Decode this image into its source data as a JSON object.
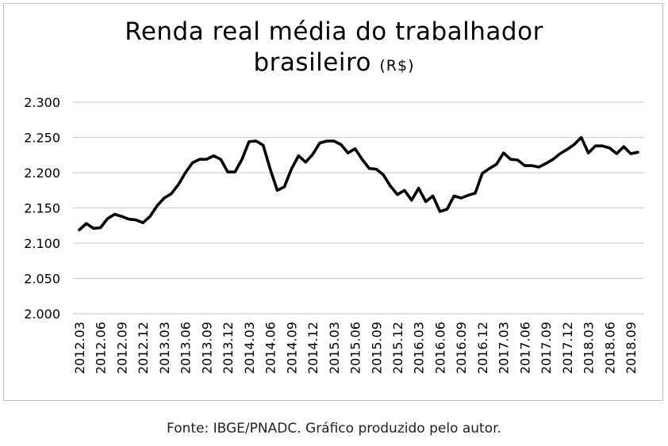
{
  "chart_data": {
    "type": "line",
    "title": "Renda real média do trabalhador",
    "title_line2": "brasileiro",
    "title_unit": "(R$)",
    "source": "Fonte: IBGE/PNADC. Gráfico produzido pelo autor.",
    "xlabel": "",
    "ylabel": "",
    "ylim": [
      2000,
      2300
    ],
    "y_ticks": [
      "2.000",
      "2.050",
      "2.100",
      "2.150",
      "2.200",
      "2.250",
      "2.300"
    ],
    "grid": true,
    "x_tick_labels": [
      "2012.03",
      "2012.06",
      "2012.09",
      "2012.12",
      "2013.03",
      "2013.06",
      "2013.09",
      "2013.12",
      "2014.03",
      "2014.06",
      "2014.09",
      "2014.12",
      "2015.03",
      "2015.06",
      "2015.09",
      "2015.12",
      "2016.03",
      "2016.06",
      "2016.09",
      "2016.12",
      "2017.03",
      "2017.06",
      "2017.09",
      "2017.12",
      "2018.03",
      "2018.06",
      "2018.09"
    ],
    "x": [
      "2012.03",
      "2012.04",
      "2012.05",
      "2012.06",
      "2012.07",
      "2012.08",
      "2012.09",
      "2012.10",
      "2012.11",
      "2012.12",
      "2013.01",
      "2013.02",
      "2013.03",
      "2013.04",
      "2013.05",
      "2013.06",
      "2013.07",
      "2013.08",
      "2013.09",
      "2013.10",
      "2013.11",
      "2013.12",
      "2014.01",
      "2014.02",
      "2014.03",
      "2014.04",
      "2014.05",
      "2014.06",
      "2014.07",
      "2014.08",
      "2014.09",
      "2014.10",
      "2014.11",
      "2014.12",
      "2015.01",
      "2015.02",
      "2015.03",
      "2015.04",
      "2015.05",
      "2015.06",
      "2015.07",
      "2015.08",
      "2015.09",
      "2015.10",
      "2015.11",
      "2015.12",
      "2016.01",
      "2016.02",
      "2016.03",
      "2016.04",
      "2016.05",
      "2016.06",
      "2016.07",
      "2016.08",
      "2016.09",
      "2016.10",
      "2016.11",
      "2016.12",
      "2017.01",
      "2017.02",
      "2017.03",
      "2017.04",
      "2017.05",
      "2017.06",
      "2017.07",
      "2017.08",
      "2017.09",
      "2017.10",
      "2017.11",
      "2017.12",
      "2018.01",
      "2018.02",
      "2018.03",
      "2018.04",
      "2018.05",
      "2018.06",
      "2018.07",
      "2018.08",
      "2018.09",
      "2018.10"
    ],
    "series": [
      {
        "values": [
          2119,
          2128,
          2121,
          2122,
          2135,
          2141,
          2138,
          2134,
          2133,
          2129,
          2138,
          2153,
          2164,
          2170,
          2183,
          2200,
          2214,
          2219,
          2219,
          2224,
          2219,
          2201,
          2201,
          2219,
          2244,
          2245,
          2239,
          2205,
          2175,
          2180,
          2205,
          2224,
          2215,
          2226,
          2242,
          2245,
          2245,
          2240,
          2228,
          2234,
          2219,
          2206,
          2205,
          2197,
          2181,
          2169,
          2175,
          2161,
          2178,
          2159,
          2167,
          2145,
          2148,
          2167,
          2164,
          2168,
          2171,
          2199,
          2206,
          2212,
          2228,
          2219,
          2218,
          2210,
          2210,
          2208,
          2213,
          2219,
          2227,
          2233,
          2240,
          2250,
          2228,
          2238,
          2238,
          2235,
          2227,
          2237,
          2227,
          2229
        ]
      }
    ]
  }
}
